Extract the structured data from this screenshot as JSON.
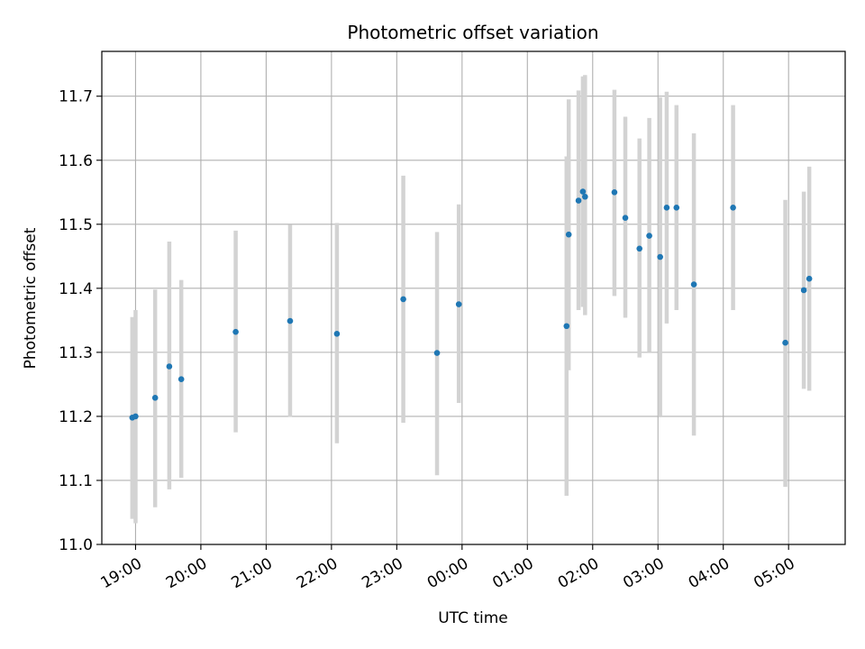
{
  "chart_data": {
    "type": "scatter",
    "title": "Photometric offset variation",
    "xlabel": "UTC time",
    "ylabel": "Photometric offset",
    "x_ticks": [
      "19:00",
      "20:00",
      "21:00",
      "22:00",
      "23:00",
      "00:00",
      "01:00",
      "02:00",
      "03:00",
      "04:00",
      "05:00"
    ],
    "y_ticks": [
      "11.0",
      "11.1",
      "11.2",
      "11.3",
      "11.4",
      "11.5",
      "11.6",
      "11.7"
    ],
    "xlim": [
      "18:29",
      "05:52"
    ],
    "ylim": [
      11.0,
      11.77
    ],
    "grid": true,
    "marker_color": "#1f77b4",
    "errorbar_color": "#d3d3d3",
    "points": [
      {
        "time": "18:57",
        "y": 11.198,
        "ylow": 11.04,
        "yhigh": 11.355
      },
      {
        "time": "19:00",
        "y": 11.2,
        "ylow": 11.033,
        "yhigh": 11.366
      },
      {
        "time": "19:18",
        "y": 11.229,
        "ylow": 11.058,
        "yhigh": 11.398
      },
      {
        "time": "19:31",
        "y": 11.278,
        "ylow": 11.086,
        "yhigh": 11.473
      },
      {
        "time": "19:42",
        "y": 11.258,
        "ylow": 11.104,
        "yhigh": 11.413
      },
      {
        "time": "20:32",
        "y": 11.332,
        "ylow": 11.175,
        "yhigh": 11.49
      },
      {
        "time": "21:22",
        "y": 11.349,
        "ylow": 11.199,
        "yhigh": 11.499
      },
      {
        "time": "22:05",
        "y": 11.329,
        "ylow": 11.158,
        "yhigh": 11.502
      },
      {
        "time": "23:06",
        "y": 11.383,
        "ylow": 11.19,
        "yhigh": 11.576
      },
      {
        "time": "23:37",
        "y": 11.299,
        "ylow": 11.108,
        "yhigh": 11.488
      },
      {
        "time": "23:57",
        "y": 11.375,
        "ylow": 11.221,
        "yhigh": 11.531
      },
      {
        "time": "01:36",
        "y": 11.341,
        "ylow": 11.076,
        "yhigh": 11.606
      },
      {
        "time": "01:38",
        "y": 11.484,
        "ylow": 11.272,
        "yhigh": 11.695
      },
      {
        "time": "01:47",
        "y": 11.537,
        "ylow": 11.366,
        "yhigh": 11.709
      },
      {
        "time": "01:51",
        "y": 11.551,
        "ylow": 11.371,
        "yhigh": 11.731
      },
      {
        "time": "01:53",
        "y": 11.543,
        "ylow": 11.358,
        "yhigh": 11.733
      },
      {
        "time": "02:20",
        "y": 11.55,
        "ylow": 11.388,
        "yhigh": 11.71
      },
      {
        "time": "02:30",
        "y": 11.51,
        "ylow": 11.354,
        "yhigh": 11.668
      },
      {
        "time": "02:43",
        "y": 11.462,
        "ylow": 11.292,
        "yhigh": 11.634
      },
      {
        "time": "02:52",
        "y": 11.482,
        "ylow": 11.3,
        "yhigh": 11.666
      },
      {
        "time": "03:02",
        "y": 11.449,
        "ylow": 11.2,
        "yhigh": 11.698
      },
      {
        "time": "03:08",
        "y": 11.526,
        "ylow": 11.345,
        "yhigh": 11.707
      },
      {
        "time": "03:17",
        "y": 11.526,
        "ylow": 11.366,
        "yhigh": 11.686
      },
      {
        "time": "03:33",
        "y": 11.406,
        "ylow": 11.17,
        "yhigh": 11.642
      },
      {
        "time": "04:09",
        "y": 11.526,
        "ylow": 11.366,
        "yhigh": 11.686
      },
      {
        "time": "04:57",
        "y": 11.315,
        "ylow": 11.09,
        "yhigh": 11.538
      },
      {
        "time": "05:14",
        "y": 11.397,
        "ylow": 11.243,
        "yhigh": 11.551
      },
      {
        "time": "05:19",
        "y": 11.415,
        "ylow": 11.24,
        "yhigh": 11.59
      }
    ]
  }
}
